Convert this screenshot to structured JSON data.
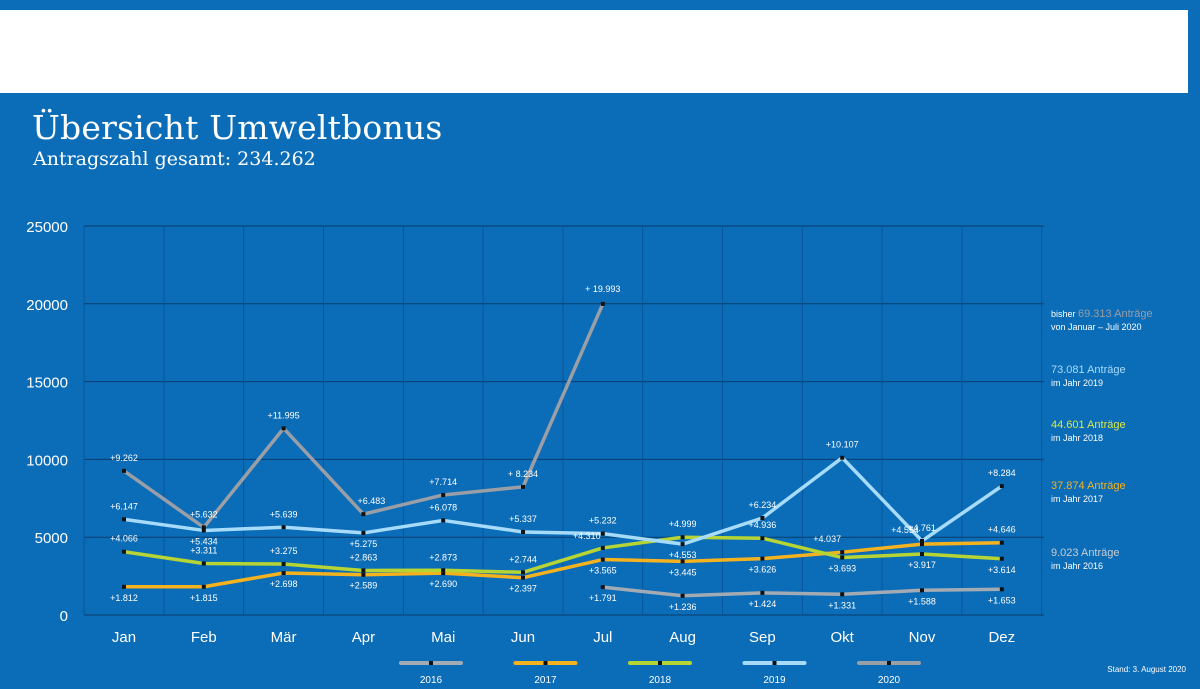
{
  "header": {
    "title": "Übersicht Umweltbonus",
    "subtitle": "Antragszahl gesamt: 234.262"
  },
  "footer": {
    "stand": "Stand: 3. August 2020"
  },
  "chart_data": {
    "type": "line",
    "title": "Übersicht Umweltbonus",
    "subtitle": "Antragszahl gesamt: 234.262",
    "xlabel": "",
    "ylabel": "",
    "categories": [
      "Jan",
      "Feb",
      "Mär",
      "Apr",
      "Mai",
      "Jun",
      "Jul",
      "Aug",
      "Sep",
      "Okt",
      "Nov",
      "Dez"
    ],
    "ylim": [
      0,
      25000
    ],
    "yticks": [
      0,
      5000,
      10000,
      15000,
      20000,
      25000
    ],
    "grid": true,
    "legend_position": "bottom",
    "series": [
      {
        "name": "2016",
        "color": "#a2aab4",
        "values": [
          null,
          null,
          null,
          null,
          null,
          null,
          1791,
          1236,
          1424,
          1331,
          1588,
          1653
        ],
        "labels": [
          null,
          null,
          null,
          null,
          null,
          null,
          "+1.791",
          "+1.236",
          "+1.424",
          "+1.331",
          "+1.588",
          "+1.653"
        ]
      },
      {
        "name": "2017",
        "color": "#f5b21f",
        "values": [
          1812,
          1815,
          2698,
          2589,
          2690,
          2397,
          3565,
          3445,
          3626,
          4037,
          4554,
          4646
        ],
        "labels": [
          "+1.812",
          "+1.815",
          "+2.698",
          "+2.589",
          "+2.690",
          "+2.397",
          "+3.565",
          "+3.445",
          "+3.626",
          "+4.037",
          "+4.554",
          "+4.646"
        ]
      },
      {
        "name": "2018",
        "color": "#b6d433",
        "values": [
          4066,
          3311,
          3275,
          2863,
          2873,
          2744,
          4310,
          4999,
          4936,
          3693,
          3917,
          3614
        ],
        "labels": [
          "+4.066",
          "+3.311",
          "+3.275",
          "+2.863",
          "+2.873",
          "+2.744",
          "+4.310",
          "+4.999",
          "+4.936",
          "+3.693",
          "+3.917",
          "+3.614"
        ]
      },
      {
        "name": "2019",
        "color": "#a7dbfa",
        "values": [
          6147,
          5434,
          5639,
          5275,
          6078,
          5337,
          5232,
          4553,
          6234,
          10107,
          4761,
          8284
        ],
        "labels": [
          "+6.147",
          "+5.434",
          "+5.639",
          "+5.275",
          "+6.078",
          "+5.337",
          "+5.232",
          "+4.553",
          "+6.234",
          "+10.107",
          "+4.761",
          "+8.284"
        ]
      },
      {
        "name": "2020",
        "color": "#9a9ea6",
        "values": [
          9262,
          5632,
          11995,
          6483,
          7714,
          8234,
          19993,
          null,
          null,
          null,
          null,
          null
        ],
        "labels": [
          "+9.262",
          "+5.632",
          "+11.995",
          "+6.483",
          "+7.714",
          "+ 8.234",
          "+ 19.993",
          null,
          null,
          null,
          null,
          null
        ]
      }
    ],
    "annotations": [
      {
        "prefix": "bisher ",
        "main": "69.313 Anträge",
        "sub": "von Januar – Juli 2020",
        "color": "#9a9ea6"
      },
      {
        "prefix": "",
        "main": "73.081 Anträge",
        "sub": "im Jahr 2019",
        "color": "#a7dbfa"
      },
      {
        "prefix": "",
        "main": "44.601 Anträge",
        "sub": "im Jahr 2018",
        "color": "#d8e84a"
      },
      {
        "prefix": "",
        "main": "37.874 Anträge",
        "sub": "im Jahr 2017",
        "color": "#f5b21f"
      },
      {
        "prefix": "",
        "main": "9.023 Anträge",
        "sub": "im Jahr 2016",
        "color": "#c8cdd3"
      }
    ]
  }
}
